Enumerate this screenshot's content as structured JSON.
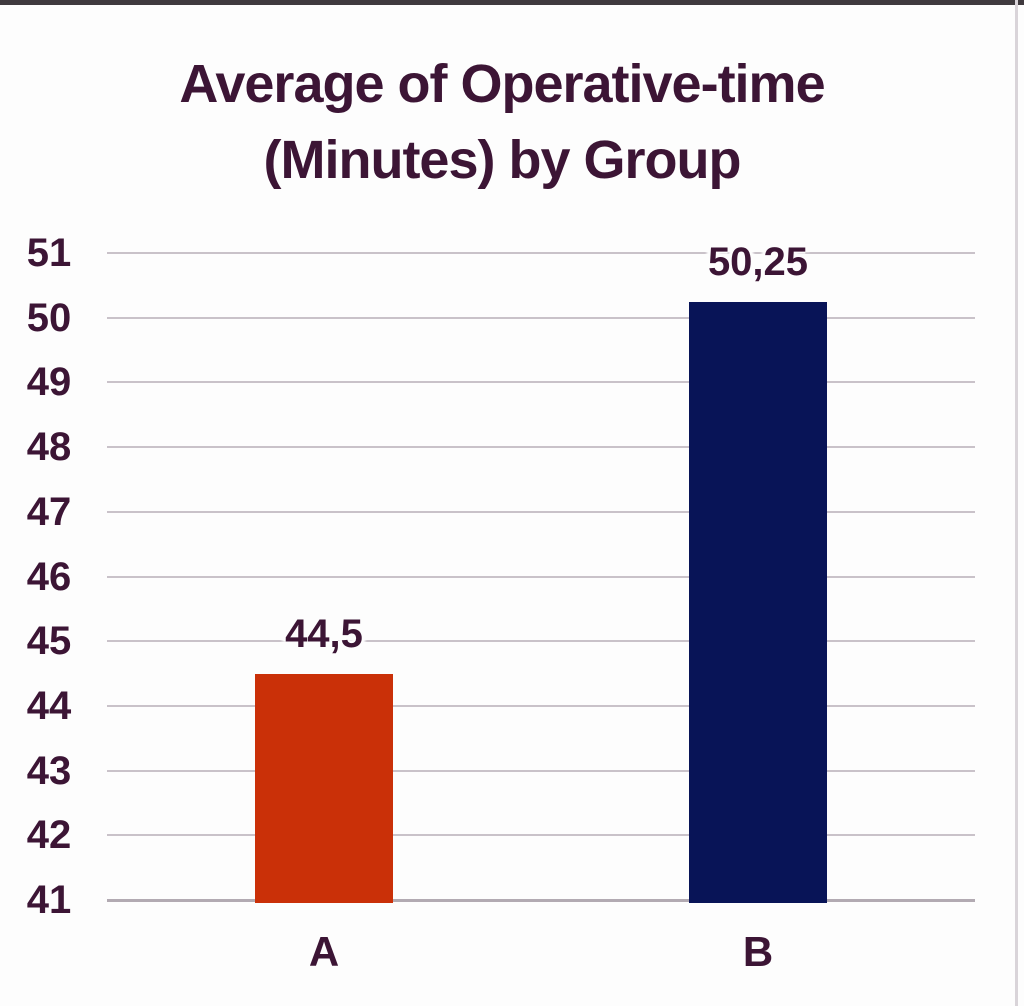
{
  "window": {
    "top_strip_color": "#3f3a3e",
    "right_edge_line_color": "#d9d4d9",
    "background": "#fdfdfd"
  },
  "chart_data": {
    "type": "bar",
    "title": "Average of Operative-time (Minutes) by Group",
    "title_lines": [
      "Average of Operative-time",
      "(Minutes) by Group"
    ],
    "xlabel": "",
    "ylabel": "",
    "legend": "none",
    "categories": [
      "A",
      "B"
    ],
    "values": [
      44.5,
      50.25
    ],
    "value_labels": [
      "44,5",
      "50,25"
    ],
    "bar_colors": [
      "#ca3008",
      "#081457"
    ],
    "y_ticks": [
      41,
      42,
      43,
      44,
      45,
      46,
      47,
      48,
      49,
      50,
      51
    ],
    "ylim": [
      41,
      51
    ],
    "grid": true,
    "gridline_color": "#c9c2c9",
    "baseline_color": "#b2aab2",
    "text_color": "#3c1535"
  }
}
